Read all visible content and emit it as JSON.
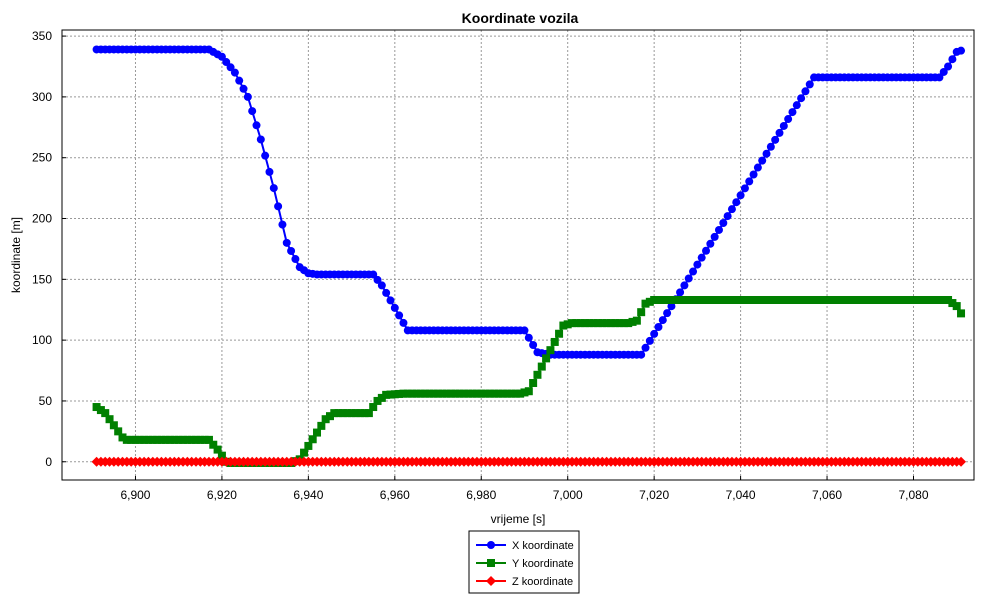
{
  "chart_data": {
    "type": "line",
    "title": "Koordinate vozila",
    "xlabel": "vrijeme [s]",
    "ylabel": "koordinate [m]",
    "xlim": [
      6883,
      7094
    ],
    "ylim": [
      -15,
      355
    ],
    "xticks": [
      6900,
      6920,
      6940,
      6960,
      6980,
      7000,
      7020,
      7040,
      7060,
      7080
    ],
    "xtick_labels": [
      "6,900",
      "6,920",
      "6,940",
      "6,960",
      "6,980",
      "7,000",
      "7,020",
      "7,040",
      "7,060",
      "7,080"
    ],
    "yticks": [
      0,
      50,
      100,
      150,
      200,
      250,
      300,
      350
    ],
    "ytick_labels": [
      "0",
      "50",
      "100",
      "150",
      "200",
      "250",
      "300",
      "350"
    ],
    "grid": true,
    "legend_position": "bottom-center",
    "x_range": [
      6891,
      7091
    ],
    "sample_step": 1,
    "series": [
      {
        "name": "X koordinate",
        "color": "#0000ff",
        "marker": "circle",
        "keypoints": [
          [
            6891,
            339
          ],
          [
            6917,
            339
          ],
          [
            6920,
            333
          ],
          [
            6923,
            320
          ],
          [
            6926,
            300
          ],
          [
            6929,
            265
          ],
          [
            6932,
            225
          ],
          [
            6935,
            180
          ],
          [
            6938,
            160
          ],
          [
            6940,
            155
          ],
          [
            6942,
            154
          ],
          [
            6955,
            154
          ],
          [
            6957,
            145
          ],
          [
            6963,
            108
          ],
          [
            6990,
            108
          ],
          [
            6993,
            90
          ],
          [
            6996,
            88
          ],
          [
            7017,
            88
          ],
          [
            7057,
            316
          ],
          [
            7086,
            316
          ],
          [
            7088,
            325
          ],
          [
            7090,
            337
          ],
          [
            7091,
            338
          ]
        ]
      },
      {
        "name": "Y koordinate",
        "color": "#008000",
        "marker": "square",
        "keypoints": [
          [
            6891,
            45
          ],
          [
            6893,
            40
          ],
          [
            6897,
            20
          ],
          [
            6898,
            18
          ],
          [
            6917,
            18
          ],
          [
            6919,
            10
          ],
          [
            6921,
            0
          ],
          [
            6922,
            -1
          ],
          [
            6936,
            -1
          ],
          [
            6938,
            2
          ],
          [
            6944,
            35
          ],
          [
            6946,
            40
          ],
          [
            6954,
            40
          ],
          [
            6956,
            50
          ],
          [
            6958,
            55
          ],
          [
            6962,
            56
          ],
          [
            6989,
            56
          ],
          [
            6991,
            58
          ],
          [
            6999,
            112
          ],
          [
            7001,
            114
          ],
          [
            7014,
            114
          ],
          [
            7016,
            116
          ],
          [
            7018,
            130
          ],
          [
            7020,
            133
          ],
          [
            7088,
            133
          ],
          [
            7090,
            128
          ],
          [
            7091,
            122
          ]
        ]
      },
      {
        "name": "Z koordinate",
        "color": "#ff0000",
        "marker": "diamond",
        "keypoints": [
          [
            6891,
            0
          ],
          [
            7091,
            0
          ]
        ]
      }
    ]
  }
}
